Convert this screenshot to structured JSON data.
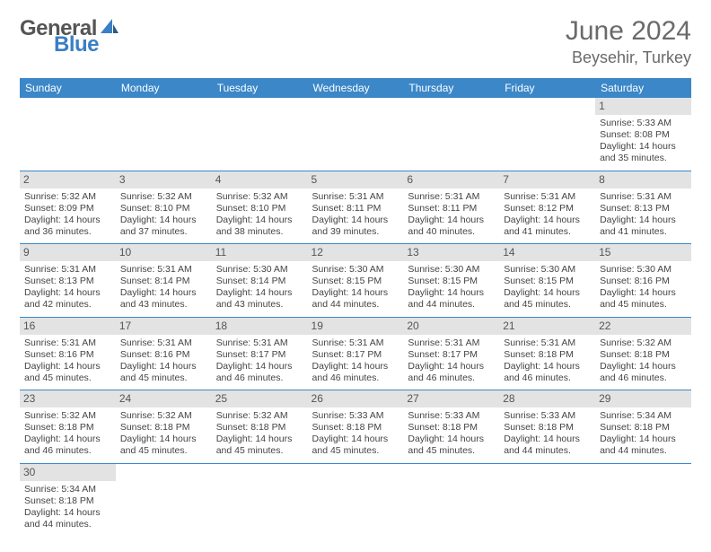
{
  "brand": {
    "part1": "General",
    "part2": "Blue"
  },
  "title": "June 2024",
  "location": "Beysehir, Turkey",
  "colors": {
    "header_bg": "#3b87c8",
    "header_fg": "#ffffff",
    "daynum_bg": "#e3e3e3",
    "cell_border": "#3b87c8",
    "text": "#444444",
    "title_color": "#6a6a6a",
    "logo_gray": "#555555",
    "logo_blue": "#3b7fc4"
  },
  "day_headers": [
    "Sunday",
    "Monday",
    "Tuesday",
    "Wednesday",
    "Thursday",
    "Friday",
    "Saturday"
  ],
  "weeks": [
    [
      null,
      null,
      null,
      null,
      null,
      null,
      {
        "n": "1",
        "sr": "5:33 AM",
        "ss": "8:08 PM",
        "dl": "14 hours and 35 minutes."
      }
    ],
    [
      {
        "n": "2",
        "sr": "5:32 AM",
        "ss": "8:09 PM",
        "dl": "14 hours and 36 minutes."
      },
      {
        "n": "3",
        "sr": "5:32 AM",
        "ss": "8:10 PM",
        "dl": "14 hours and 37 minutes."
      },
      {
        "n": "4",
        "sr": "5:32 AM",
        "ss": "8:10 PM",
        "dl": "14 hours and 38 minutes."
      },
      {
        "n": "5",
        "sr": "5:31 AM",
        "ss": "8:11 PM",
        "dl": "14 hours and 39 minutes."
      },
      {
        "n": "6",
        "sr": "5:31 AM",
        "ss": "8:11 PM",
        "dl": "14 hours and 40 minutes."
      },
      {
        "n": "7",
        "sr": "5:31 AM",
        "ss": "8:12 PM",
        "dl": "14 hours and 41 minutes."
      },
      {
        "n": "8",
        "sr": "5:31 AM",
        "ss": "8:13 PM",
        "dl": "14 hours and 41 minutes."
      }
    ],
    [
      {
        "n": "9",
        "sr": "5:31 AM",
        "ss": "8:13 PM",
        "dl": "14 hours and 42 minutes."
      },
      {
        "n": "10",
        "sr": "5:31 AM",
        "ss": "8:14 PM",
        "dl": "14 hours and 43 minutes."
      },
      {
        "n": "11",
        "sr": "5:30 AM",
        "ss": "8:14 PM",
        "dl": "14 hours and 43 minutes."
      },
      {
        "n": "12",
        "sr": "5:30 AM",
        "ss": "8:15 PM",
        "dl": "14 hours and 44 minutes."
      },
      {
        "n": "13",
        "sr": "5:30 AM",
        "ss": "8:15 PM",
        "dl": "14 hours and 44 minutes."
      },
      {
        "n": "14",
        "sr": "5:30 AM",
        "ss": "8:15 PM",
        "dl": "14 hours and 45 minutes."
      },
      {
        "n": "15",
        "sr": "5:30 AM",
        "ss": "8:16 PM",
        "dl": "14 hours and 45 minutes."
      }
    ],
    [
      {
        "n": "16",
        "sr": "5:31 AM",
        "ss": "8:16 PM",
        "dl": "14 hours and 45 minutes."
      },
      {
        "n": "17",
        "sr": "5:31 AM",
        "ss": "8:16 PM",
        "dl": "14 hours and 45 minutes."
      },
      {
        "n": "18",
        "sr": "5:31 AM",
        "ss": "8:17 PM",
        "dl": "14 hours and 46 minutes."
      },
      {
        "n": "19",
        "sr": "5:31 AM",
        "ss": "8:17 PM",
        "dl": "14 hours and 46 minutes."
      },
      {
        "n": "20",
        "sr": "5:31 AM",
        "ss": "8:17 PM",
        "dl": "14 hours and 46 minutes."
      },
      {
        "n": "21",
        "sr": "5:31 AM",
        "ss": "8:18 PM",
        "dl": "14 hours and 46 minutes."
      },
      {
        "n": "22",
        "sr": "5:32 AM",
        "ss": "8:18 PM",
        "dl": "14 hours and 46 minutes."
      }
    ],
    [
      {
        "n": "23",
        "sr": "5:32 AM",
        "ss": "8:18 PM",
        "dl": "14 hours and 46 minutes."
      },
      {
        "n": "24",
        "sr": "5:32 AM",
        "ss": "8:18 PM",
        "dl": "14 hours and 45 minutes."
      },
      {
        "n": "25",
        "sr": "5:32 AM",
        "ss": "8:18 PM",
        "dl": "14 hours and 45 minutes."
      },
      {
        "n": "26",
        "sr": "5:33 AM",
        "ss": "8:18 PM",
        "dl": "14 hours and 45 minutes."
      },
      {
        "n": "27",
        "sr": "5:33 AM",
        "ss": "8:18 PM",
        "dl": "14 hours and 45 minutes."
      },
      {
        "n": "28",
        "sr": "5:33 AM",
        "ss": "8:18 PM",
        "dl": "14 hours and 44 minutes."
      },
      {
        "n": "29",
        "sr": "5:34 AM",
        "ss": "8:18 PM",
        "dl": "14 hours and 44 minutes."
      }
    ],
    [
      {
        "n": "30",
        "sr": "5:34 AM",
        "ss": "8:18 PM",
        "dl": "14 hours and 44 minutes."
      },
      null,
      null,
      null,
      null,
      null,
      null
    ]
  ],
  "labels": {
    "sunrise": "Sunrise:",
    "sunset": "Sunset:",
    "daylight": "Daylight:"
  }
}
